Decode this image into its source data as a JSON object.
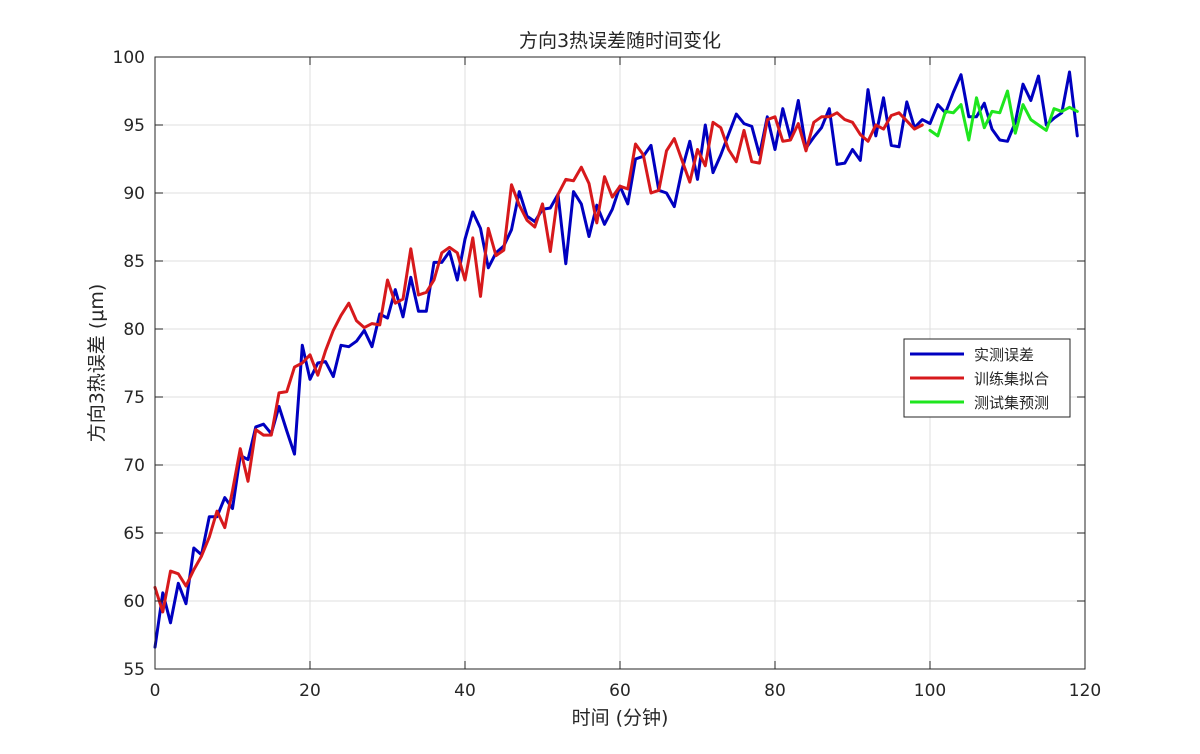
{
  "chart_data": {
    "type": "line",
    "title": "方向3热误差随时间变化",
    "xlabel": "时间 (分钟)",
    "ylabel": "方向3热误差 (μm)",
    "xlim": [
      0,
      120
    ],
    "ylim": [
      55,
      100
    ],
    "xticks": [
      0,
      20,
      40,
      60,
      80,
      100,
      120
    ],
    "yticks": [
      55,
      60,
      65,
      70,
      75,
      80,
      85,
      90,
      95,
      100
    ],
    "grid": true,
    "legend_position": "right",
    "series": [
      {
        "name": "实测误差",
        "color": "#0000c0",
        "x": [
          0,
          1,
          2,
          3,
          4,
          5,
          6,
          7,
          8,
          9,
          10,
          11,
          12,
          13,
          14,
          15,
          16,
          17,
          18,
          19,
          20,
          21,
          22,
          23,
          24,
          25,
          26,
          27,
          28,
          29,
          30,
          31,
          32,
          33,
          34,
          35,
          36,
          37,
          38,
          39,
          40,
          41,
          42,
          43,
          44,
          45,
          46,
          47,
          48,
          49,
          50,
          51,
          52,
          53,
          54,
          55,
          56,
          57,
          58,
          59,
          60,
          61,
          62,
          63,
          64,
          65,
          66,
          67,
          68,
          69,
          70,
          71,
          72,
          73,
          74,
          75,
          76,
          77,
          78,
          79,
          80,
          81,
          82,
          83,
          84,
          85,
          86,
          87,
          88,
          89,
          90,
          91,
          92,
          93,
          94,
          95,
          96,
          97,
          98,
          99,
          100,
          101,
          102,
          103,
          104,
          105,
          106,
          107,
          108,
          109,
          110,
          111,
          112,
          113,
          114,
          115,
          116,
          117,
          118,
          119
        ],
        "values": [
          56.6,
          60.6,
          58.4,
          61.3,
          59.8,
          63.9,
          63.4,
          66.2,
          66.2,
          67.6,
          66.8,
          70.7,
          70.4,
          72.8,
          73.0,
          72.3,
          74.3,
          72.5,
          70.8,
          78.8,
          76.3,
          77.5,
          77.6,
          76.5,
          78.8,
          78.7,
          79.1,
          79.9,
          78.7,
          81.1,
          80.8,
          82.9,
          80.9,
          83.8,
          81.3,
          81.3,
          84.9,
          84.9,
          85.7,
          83.6,
          86.6,
          88.6,
          87.4,
          84.5,
          85.6,
          86.1,
          87.3,
          90.1,
          88.3,
          87.9,
          88.8,
          88.9,
          89.9,
          84.8,
          90.1,
          89.2,
          86.8,
          89.1,
          87.7,
          88.8,
          90.5,
          89.2,
          92.5,
          92.7,
          93.5,
          90.2,
          90.0,
          89.0,
          91.7,
          93.8,
          91.0,
          95.0,
          91.5,
          92.8,
          94.3,
          95.8,
          95.1,
          94.9,
          92.8,
          95.6,
          93.2,
          96.2,
          94.0,
          96.8,
          93.3,
          94.1,
          94.8,
          96.2,
          92.1,
          92.2,
          93.2,
          92.4,
          97.6,
          94.2,
          97.0,
          93.5,
          93.4,
          96.7,
          94.8,
          95.4,
          95.1,
          96.5,
          95.9,
          97.4,
          98.7,
          95.6,
          95.6,
          96.6,
          94.7,
          93.9,
          93.8,
          95.2,
          98.0,
          96.8,
          98.6,
          95.0,
          95.5,
          95.9,
          98.9,
          94.2
        ]
      },
      {
        "name": "训练集拟合",
        "color": "#d7191c",
        "x": [
          0,
          1,
          2,
          3,
          4,
          5,
          6,
          7,
          8,
          9,
          10,
          11,
          12,
          13,
          14,
          15,
          16,
          17,
          18,
          19,
          20,
          21,
          22,
          23,
          24,
          25,
          26,
          27,
          28,
          29,
          30,
          31,
          32,
          33,
          34,
          35,
          36,
          37,
          38,
          39,
          40,
          41,
          42,
          43,
          44,
          45,
          46,
          47,
          48,
          49,
          50,
          51,
          52,
          53,
          54,
          55,
          56,
          57,
          58,
          59,
          60,
          61,
          62,
          63,
          64,
          65,
          66,
          67,
          68,
          69,
          70,
          71,
          72,
          73,
          74,
          75,
          76,
          77,
          78,
          79,
          80,
          81,
          82,
          83,
          84,
          85,
          86,
          87,
          88,
          89,
          90,
          91,
          92,
          93,
          94,
          95,
          96,
          97,
          98,
          99
        ],
        "values": [
          61.0,
          59.2,
          62.2,
          62.0,
          61.1,
          62.3,
          63.3,
          64.7,
          66.6,
          65.4,
          68.1,
          71.2,
          68.8,
          72.6,
          72.2,
          72.2,
          75.3,
          75.4,
          77.2,
          77.5,
          78.1,
          76.6,
          78.4,
          79.9,
          81.0,
          81.9,
          80.6,
          80.1,
          80.4,
          80.3,
          83.6,
          81.9,
          82.2,
          85.9,
          82.5,
          82.7,
          83.6,
          85.6,
          86.0,
          85.6,
          83.6,
          86.7,
          82.4,
          87.4,
          85.4,
          85.8,
          90.6,
          89.1,
          88.0,
          87.5,
          89.2,
          85.7,
          89.9,
          91.0,
          90.9,
          91.9,
          90.7,
          87.8,
          91.2,
          89.7,
          90.5,
          90.3,
          93.6,
          92.8,
          90.0,
          90.2,
          93.1,
          94.0,
          92.4,
          90.8,
          93.2,
          92.0,
          95.2,
          94.8,
          93.2,
          92.3,
          94.6,
          92.3,
          92.2,
          95.4,
          95.6,
          93.8,
          93.9,
          95.1,
          93.1,
          95.2,
          95.6,
          95.6,
          95.9,
          95.4,
          95.2,
          94.3,
          93.8,
          95.0,
          94.7,
          95.7,
          95.9,
          95.3,
          94.7,
          95.0
        ]
      },
      {
        "name": "测试集预测",
        "color": "#1ee61e",
        "x": [
          100,
          101,
          102,
          103,
          104,
          105,
          106,
          107,
          108,
          109,
          110,
          111,
          112,
          113,
          114,
          115,
          116,
          117,
          118,
          119
        ],
        "values": [
          94.6,
          94.2,
          96.0,
          95.9,
          96.5,
          93.9,
          97.0,
          94.8,
          96.0,
          95.9,
          97.5,
          94.4,
          96.5,
          95.4,
          95.0,
          94.6,
          96.2,
          96.0,
          96.3,
          96.0
        ]
      }
    ]
  }
}
